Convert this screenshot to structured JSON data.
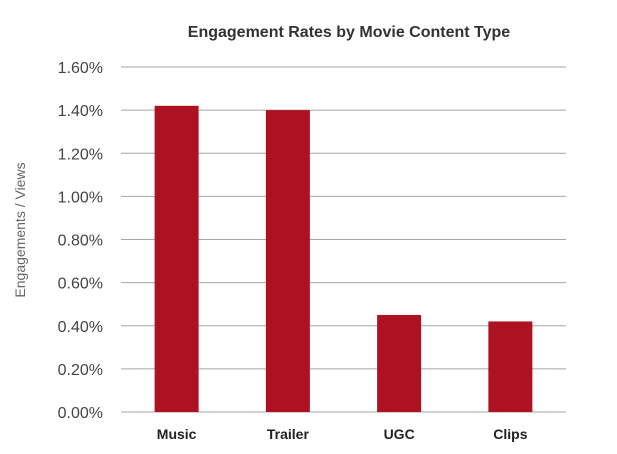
{
  "chart_data": {
    "type": "bar",
    "title": "Engagement Rates by Movie Content Type",
    "xlabel": "",
    "ylabel": "Engagements / Views",
    "categories": [
      "Music",
      "Trailer",
      "UGC",
      "Clips"
    ],
    "values": [
      1.42,
      1.4,
      0.45,
      0.42
    ],
    "ylim": [
      0,
      1.6
    ],
    "yticks": [
      0,
      0.2,
      0.4,
      0.6,
      0.8,
      1.0,
      1.2,
      1.4,
      1.6
    ],
    "ytick_labels": [
      "0.00%",
      "0.20%",
      "0.40%",
      "0.60%",
      "0.80%",
      "1.00%",
      "1.20%",
      "1.40%",
      "1.60%"
    ],
    "grid": true,
    "legend": "none",
    "bar_color": "#ad1122"
  }
}
